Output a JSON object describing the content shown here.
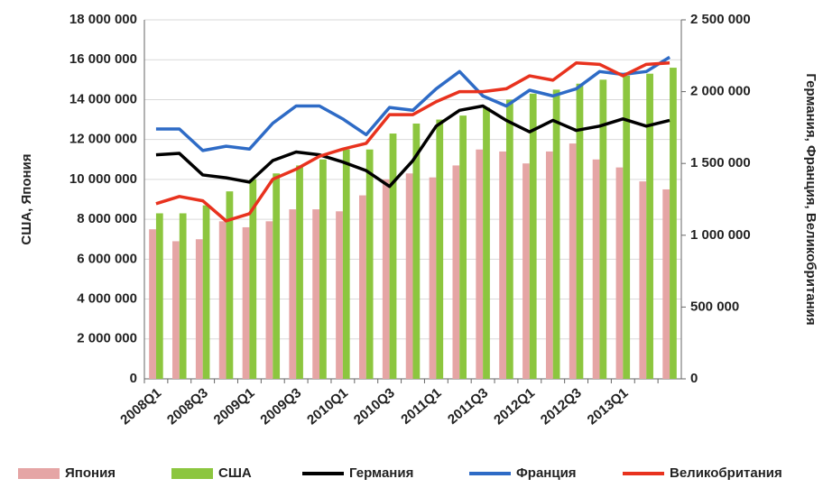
{
  "chart_data": {
    "type": "bar-line",
    "y_label": "США, Япония",
    "y2_label": "Германия, Франция, Великобритания",
    "categories": [
      "2008Q1",
      null,
      "2008Q3",
      null,
      "2009Q1",
      null,
      "2009Q3",
      null,
      "2010Q1",
      null,
      "2010Q3",
      null,
      "2011Q1",
      null,
      "2011Q3",
      null,
      "2012Q1",
      null,
      "2012Q3",
      null,
      "2013Q1",
      null,
      null
    ],
    "ylim": [
      0,
      18000000
    ],
    "yticks": [
      0,
      {
        "value": 2000000,
        "label": "2 000 000"
      },
      {
        "value": 4000000,
        "label": "4 000 000"
      },
      {
        "value": 6000000,
        "label": "6 000 000"
      },
      {
        "value": 8000000,
        "label": "8 000 000"
      },
      {
        "value": 10000000,
        "label": "10 000 000"
      },
      {
        "value": 12000000,
        "label": "12 000 000"
      },
      {
        "value": 14000000,
        "label": "14 000 000"
      },
      {
        "value": 16000000,
        "label": "16 000 000"
      },
      {
        "value": 18000000,
        "label": "18 000 000"
      }
    ],
    "y2lim": [
      0,
      2500000
    ],
    "y2ticks": [
      0,
      {
        "value": 500000,
        "label": "500 000"
      },
      {
        "value": 1000000,
        "label": "1 000 000"
      },
      {
        "value": 1500000,
        "label": "1 500 000"
      },
      {
        "value": 2000000,
        "label": "2 000 000"
      },
      {
        "value": 2500000,
        "label": "2 500 000"
      }
    ],
    "grid": true,
    "legend": "bottom",
    "series": [
      {
        "name": "Япония",
        "type": "bar",
        "color": "#e5a5a5",
        "values": [
          7500000,
          6900000,
          7000000,
          7900000,
          7600000,
          7900000,
          8500000,
          8500000,
          8400000,
          9200000,
          10000000,
          10300000,
          10100000,
          10700000,
          11500000,
          11400000,
          10800000,
          11400000,
          11800000,
          11000000,
          10600000,
          9900000,
          9500000
        ]
      },
      {
        "name": "США",
        "type": "bar",
        "color": "#8cc63f",
        "values": [
          8300000,
          8300000,
          8700000,
          9400000,
          10000000,
          10300000,
          10700000,
          11000000,
          11500000,
          11500000,
          12300000,
          12800000,
          13000000,
          13200000,
          13600000,
          14000000,
          14300000,
          14500000,
          14800000,
          15000000,
          15200000,
          15300000,
          15600000
        ]
      },
      {
        "name": "Германия",
        "type": "line",
        "axis": "y2",
        "color": "#000000",
        "values": [
          1560000,
          1570000,
          1420000,
          1400000,
          1370000,
          1520000,
          1580000,
          1560000,
          1510000,
          1450000,
          1340000,
          1520000,
          1760000,
          1870000,
          1900000,
          1800000,
          1720000,
          1800000,
          1730000,
          1760000,
          1810000,
          1760000,
          1800000
        ]
      },
      {
        "name": "Франция",
        "type": "line",
        "axis": "y2",
        "color": "#2e6bc6",
        "values": [
          1740000,
          1740000,
          1590000,
          1620000,
          1600000,
          1780000,
          1900000,
          1900000,
          1810000,
          1700000,
          1890000,
          1870000,
          2020000,
          2140000,
          1970000,
          1900000,
          2010000,
          1970000,
          2020000,
          2140000,
          2120000,
          2140000,
          2240000
        ]
      },
      {
        "name": "Великобритания",
        "type": "line",
        "axis": "y2",
        "color": "#e8321e",
        "values": [
          1220000,
          1270000,
          1240000,
          1100000,
          1150000,
          1390000,
          1460000,
          1550000,
          1600000,
          1640000,
          1840000,
          1840000,
          1930000,
          2000000,
          2000000,
          2020000,
          2110000,
          2080000,
          2200000,
          2190000,
          2110000,
          2190000,
          2200000
        ]
      }
    ]
  }
}
